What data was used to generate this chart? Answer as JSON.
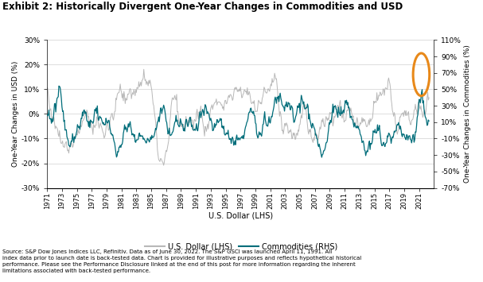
{
  "title": "Exhibit 2: Historically Divergent One-Year Changes in Commodities and USD",
  "ylabel_left": "One-Year Changes in USD (%)",
  "ylabel_right": "One-Year Changes in Commodities (%)",
  "xlabel": "U.S. Dollar (LHS)",
  "usd_color": "#b8b8b8",
  "commodities_color": "#006d7a",
  "ylim_left": [
    -0.3,
    0.3
  ],
  "ylim_right": [
    -0.7,
    1.1
  ],
  "yticks_left": [
    -0.3,
    -0.2,
    -0.1,
    0.0,
    0.1,
    0.2,
    0.3
  ],
  "ytick_labels_left": [
    "-30%",
    "-20%",
    "-10%",
    "0%",
    "10%",
    "20%",
    "30%"
  ],
  "yticks_right": [
    -0.7,
    -0.5,
    -0.3,
    -0.1,
    0.1,
    0.3,
    0.5,
    0.7,
    0.9,
    1.1
  ],
  "ytick_labels_right": [
    "-70%",
    "-50%",
    "-30%",
    "-10%",
    "10%",
    "30%",
    "50%",
    "70%",
    "90%",
    "110%"
  ],
  "source_text": "Source: S&P Dow Jones Indices LLC, Refinitiv. Data as of June 30, 2022. The S&P GSCI was launched April 11, 1991. All\nindex data prior to launch date is back-tested data. Chart is provided for illustrative purposes and reflects hypothetical historical\nperformance. Please see the Performance Disclosure linked at the end of this post for more information regarding the inherent\nlimitations associated with back-tested performance.",
  "legend_usd": "U.S. Dollar (LHS)",
  "legend_commodities": "Commodities (RHS)",
  "circle_color": "#e8891a",
  "xlim": [
    1971.0,
    2023.0
  ]
}
